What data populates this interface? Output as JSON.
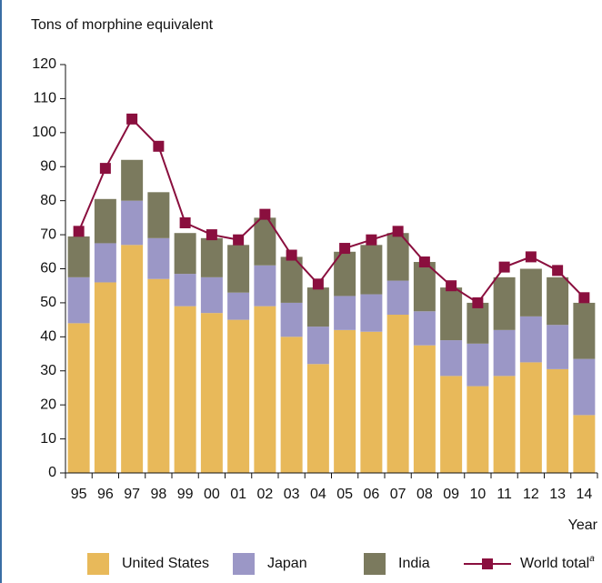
{
  "chart_data": {
    "type": "stacked_bar_line",
    "y_axis_label": "Tons of morphine equivalent",
    "x_axis_label": "Year",
    "categories": [
      "95",
      "96",
      "97",
      "98",
      "99",
      "00",
      "01",
      "02",
      "03",
      "04",
      "05",
      "06",
      "07",
      "08",
      "09",
      "10",
      "11",
      "12",
      "13",
      "14"
    ],
    "series": [
      {
        "name": "United States",
        "color": "#e8b95a",
        "kind": "bar",
        "values": [
          44,
          56,
          67,
          57,
          49,
          47,
          45,
          49,
          40,
          32,
          42,
          41.5,
          46.5,
          37.5,
          28.5,
          25.5,
          28.5,
          32.5,
          30.5,
          17
        ]
      },
      {
        "name": "Japan",
        "color": "#9b97c6",
        "kind": "bar",
        "values": [
          13.5,
          11.5,
          13,
          12,
          9.5,
          10.5,
          8,
          12,
          10,
          11,
          10,
          11,
          10,
          10,
          10.5,
          12.5,
          13.5,
          13.5,
          13,
          16.5
        ]
      },
      {
        "name": "India",
        "color": "#7b7a5e",
        "kind": "bar",
        "values": [
          12,
          13,
          12,
          13.5,
          12,
          11.5,
          14,
          14,
          13.5,
          11.5,
          13,
          14.5,
          14,
          14.5,
          15.5,
          12,
          15.5,
          14,
          14,
          16.5
        ]
      },
      {
        "name": "World total",
        "note": "a",
        "color": "#8a0f3e",
        "kind": "line",
        "values": [
          71,
          89.5,
          104,
          96,
          73.5,
          70,
          68.5,
          76,
          64,
          55.5,
          66,
          68.5,
          71,
          62,
          55,
          50,
          60.5,
          63.5,
          59.5,
          51.5
        ]
      }
    ],
    "ylim": [
      0,
      120
    ],
    "yticks": [
      0,
      10,
      20,
      30,
      40,
      50,
      60,
      70,
      80,
      90,
      100,
      110,
      120
    ]
  }
}
